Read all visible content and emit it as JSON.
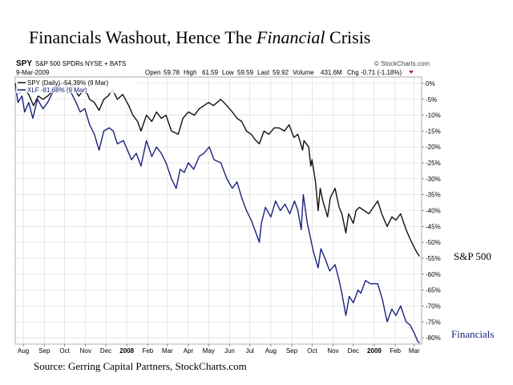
{
  "title": {
    "part1": "Financials Washout, Hence The ",
    "part2": "Financial",
    "part3": " Crisis"
  },
  "header": {
    "symbol": "SPY",
    "name": "S&P 500 SPDRs",
    "exchange": "NYSE + BATS",
    "source": "© StockCharts.com",
    "date": "9-Mar-2009",
    "open_label": "Open",
    "open": "59.78",
    "high_label": "High",
    "high": "61.59",
    "low_label": "Low",
    "low": "59.59",
    "last_label": "Last",
    "last": "59.92",
    "volume_label": "Volume",
    "volume": "431.6M",
    "chg_label": "Chg",
    "chg": "-0.71 (-1.18%)"
  },
  "legend": {
    "spy": "SPY (Daily) -54.39% (9 Mar)",
    "xlf": "XLF -81.68% (9 Mar)"
  },
  "side_labels": {
    "sp500": "S&P 500",
    "financials": "Financials"
  },
  "footer": {
    "source": "Source: Gerring Capital Partners, StockCharts.com"
  },
  "colors": {
    "spy": "#111111",
    "xlf": "#1a237e",
    "grid": "#d8d8d8",
    "chg": "#c2185b"
  },
  "chart_data": {
    "type": "line",
    "title": "Financials Washout, Hence The Financial Crisis",
    "xlabel": "",
    "ylabel": "",
    "ylim": [
      -82,
      2
    ],
    "yticks": [
      0,
      -5,
      -10,
      -15,
      -20,
      -25,
      -30,
      -35,
      -40,
      -45,
      -50,
      -55,
      -60,
      -65,
      -70,
      -75,
      -80
    ],
    "ytick_labels": [
      "0%",
      "-5%",
      "-10%",
      "-15%",
      "-20%",
      "-25%",
      "-30%",
      "-35%",
      "-40%",
      "-45%",
      "-50%",
      "-55%",
      "-60%",
      "-65%",
      "-70%",
      "-75%",
      "-80%"
    ],
    "xlim": [
      "2007-07-20",
      "2009-03-12"
    ],
    "x_ticks": [
      {
        "date": "2007-08-01",
        "label": "Aug"
      },
      {
        "date": "2007-09-01",
        "label": "Sep"
      },
      {
        "date": "2007-10-01",
        "label": "Oct"
      },
      {
        "date": "2007-11-01",
        "label": "Nov"
      },
      {
        "date": "2007-12-01",
        "label": "Dec"
      },
      {
        "date": "2008-01-01",
        "label": "2008"
      },
      {
        "date": "2008-02-01",
        "label": "Feb"
      },
      {
        "date": "2008-03-01",
        "label": "Mar"
      },
      {
        "date": "2008-04-01",
        "label": "Apr"
      },
      {
        "date": "2008-05-01",
        "label": "May"
      },
      {
        "date": "2008-06-01",
        "label": "Jun"
      },
      {
        "date": "2008-07-01",
        "label": "Jul"
      },
      {
        "date": "2008-08-01",
        "label": "Aug"
      },
      {
        "date": "2008-09-01",
        "label": "Sep"
      },
      {
        "date": "2008-10-01",
        "label": "Oct"
      },
      {
        "date": "2008-11-01",
        "label": "Nov"
      },
      {
        "date": "2008-12-01",
        "label": "Dec"
      },
      {
        "date": "2009-01-01",
        "label": "2009"
      },
      {
        "date": "2009-02-01",
        "label": "Feb"
      },
      {
        "date": "2009-03-01",
        "label": "Mar"
      }
    ],
    "grid": true,
    "series": [
      {
        "name": "SPY (Daily) -54.39% (9 Mar)",
        "color": "#111111",
        "points": [
          [
            "2007-07-20",
            0
          ],
          [
            "2007-07-26",
            -3
          ],
          [
            "2007-08-02",
            -2
          ],
          [
            "2007-08-09",
            -3.5
          ],
          [
            "2007-08-16",
            -7
          ],
          [
            "2007-08-23",
            -4
          ],
          [
            "2007-08-30",
            -5
          ],
          [
            "2007-09-06",
            -4
          ],
          [
            "2007-09-13",
            -2.5
          ],
          [
            "2007-09-20",
            -1
          ],
          [
            "2007-09-27",
            0
          ],
          [
            "2007-10-09",
            0
          ],
          [
            "2007-10-16",
            -2
          ],
          [
            "2007-10-22",
            -4
          ],
          [
            "2007-10-31",
            -1.5
          ],
          [
            "2007-11-07",
            -5
          ],
          [
            "2007-11-14",
            -6
          ],
          [
            "2007-11-21",
            -8.5
          ],
          [
            "2007-11-28",
            -5
          ],
          [
            "2007-12-04",
            -4
          ],
          [
            "2007-12-11",
            -2
          ],
          [
            "2007-12-18",
            -5
          ],
          [
            "2007-12-26",
            -3.5
          ],
          [
            "2008-01-04",
            -7
          ],
          [
            "2008-01-10",
            -10
          ],
          [
            "2008-01-17",
            -12
          ],
          [
            "2008-01-22",
            -15
          ],
          [
            "2008-01-30",
            -10
          ],
          [
            "2008-02-07",
            -12
          ],
          [
            "2008-02-14",
            -9
          ],
          [
            "2008-02-21",
            -11
          ],
          [
            "2008-02-28",
            -10
          ],
          [
            "2008-03-07",
            -15
          ],
          [
            "2008-03-17",
            -16
          ],
          [
            "2008-03-24",
            -11
          ],
          [
            "2008-04-01",
            -9
          ],
          [
            "2008-04-10",
            -10
          ],
          [
            "2008-04-17",
            -8
          ],
          [
            "2008-04-24",
            -7
          ],
          [
            "2008-05-01",
            -6
          ],
          [
            "2008-05-08",
            -7
          ],
          [
            "2008-05-19",
            -5
          ],
          [
            "2008-05-28",
            -7
          ],
          [
            "2008-06-05",
            -9
          ],
          [
            "2008-06-12",
            -11
          ],
          [
            "2008-06-19",
            -12
          ],
          [
            "2008-06-26",
            -15
          ],
          [
            "2008-07-03",
            -16
          ],
          [
            "2008-07-10",
            -18
          ],
          [
            "2008-07-15",
            -19
          ],
          [
            "2008-07-22",
            -15
          ],
          [
            "2008-07-29",
            -16
          ],
          [
            "2008-08-06",
            -14
          ],
          [
            "2008-08-13",
            -14
          ],
          [
            "2008-08-21",
            -15
          ],
          [
            "2008-08-28",
            -13
          ],
          [
            "2008-09-04",
            -17
          ],
          [
            "2008-09-10",
            -16
          ],
          [
            "2008-09-17",
            -21
          ],
          [
            "2008-09-19",
            -18
          ],
          [
            "2008-09-26",
            -20
          ],
          [
            "2008-09-29",
            -26
          ],
          [
            "2008-10-01",
            -24
          ],
          [
            "2008-10-06",
            -31
          ],
          [
            "2008-10-10",
            -40
          ],
          [
            "2008-10-13",
            -33
          ],
          [
            "2008-10-17",
            -37
          ],
          [
            "2008-10-24",
            -42
          ],
          [
            "2008-10-28",
            -36
          ],
          [
            "2008-11-04",
            -33
          ],
          [
            "2008-11-10",
            -39
          ],
          [
            "2008-11-14",
            -41
          ],
          [
            "2008-11-20",
            -47
          ],
          [
            "2008-11-24",
            -41
          ],
          [
            "2008-12-01",
            -44
          ],
          [
            "2008-12-05",
            -40
          ],
          [
            "2008-12-10",
            -39
          ],
          [
            "2008-12-17",
            -40
          ],
          [
            "2008-12-24",
            -41
          ],
          [
            "2009-01-06",
            -37
          ],
          [
            "2009-01-12",
            -41
          ],
          [
            "2009-01-20",
            -45
          ],
          [
            "2009-01-27",
            -42
          ],
          [
            "2009-02-02",
            -43
          ],
          [
            "2009-02-09",
            -41
          ],
          [
            "2009-02-17",
            -46
          ],
          [
            "2009-02-23",
            -49
          ],
          [
            "2009-03-02",
            -52
          ],
          [
            "2009-03-06",
            -53.5
          ],
          [
            "2009-03-09",
            -54.4
          ]
        ]
      },
      {
        "name": "XLF -81.68% (9 Mar)",
        "color": "#1a237e",
        "points": [
          [
            "2007-07-20",
            0
          ],
          [
            "2007-07-24",
            -6
          ],
          [
            "2007-07-30",
            -4
          ],
          [
            "2007-08-03",
            -9
          ],
          [
            "2007-08-09",
            -6
          ],
          [
            "2007-08-15",
            -11
          ],
          [
            "2007-08-22",
            -5
          ],
          [
            "2007-08-30",
            -8
          ],
          [
            "2007-09-06",
            -6
          ],
          [
            "2007-09-13",
            -3
          ],
          [
            "2007-09-20",
            0
          ],
          [
            "2007-09-27",
            -2
          ],
          [
            "2007-10-04",
            -1
          ],
          [
            "2007-10-11",
            -3
          ],
          [
            "2007-10-18",
            -6
          ],
          [
            "2007-10-24",
            -9
          ],
          [
            "2007-10-31",
            -8
          ],
          [
            "2007-11-07",
            -13
          ],
          [
            "2007-11-14",
            -16
          ],
          [
            "2007-11-21",
            -21
          ],
          [
            "2007-11-28",
            -15
          ],
          [
            "2007-12-06",
            -14
          ],
          [
            "2007-12-12",
            -15
          ],
          [
            "2007-12-18",
            -19
          ],
          [
            "2007-12-27",
            -18
          ],
          [
            "2008-01-08",
            -24
          ],
          [
            "2008-01-15",
            -22
          ],
          [
            "2008-01-22",
            -26
          ],
          [
            "2008-01-30",
            -18
          ],
          [
            "2008-02-07",
            -23
          ],
          [
            "2008-02-14",
            -20
          ],
          [
            "2008-02-21",
            -22
          ],
          [
            "2008-02-28",
            -25
          ],
          [
            "2008-03-07",
            -30
          ],
          [
            "2008-03-14",
            -33
          ],
          [
            "2008-03-20",
            -27
          ],
          [
            "2008-03-26",
            -28
          ],
          [
            "2008-04-01",
            -25
          ],
          [
            "2008-04-09",
            -27
          ],
          [
            "2008-04-17",
            -23
          ],
          [
            "2008-04-24",
            -22
          ],
          [
            "2008-05-02",
            -20
          ],
          [
            "2008-05-09",
            -24
          ],
          [
            "2008-05-19",
            -25
          ],
          [
            "2008-05-28",
            -30
          ],
          [
            "2008-06-05",
            -33
          ],
          [
            "2008-06-12",
            -31
          ],
          [
            "2008-06-19",
            -36
          ],
          [
            "2008-06-26",
            -40
          ],
          [
            "2008-07-03",
            -43
          ],
          [
            "2008-07-10",
            -47
          ],
          [
            "2008-07-15",
            -50
          ],
          [
            "2008-07-18",
            -44
          ],
          [
            "2008-07-24",
            -39
          ],
          [
            "2008-08-01",
            -42
          ],
          [
            "2008-08-08",
            -37
          ],
          [
            "2008-08-15",
            -40
          ],
          [
            "2008-08-22",
            -38
          ],
          [
            "2008-08-29",
            -41
          ],
          [
            "2008-09-05",
            -37
          ],
          [
            "2008-09-10",
            -40
          ],
          [
            "2008-09-15",
            -46
          ],
          [
            "2008-09-18",
            -35
          ],
          [
            "2008-09-24",
            -44
          ],
          [
            "2008-09-29",
            -49
          ],
          [
            "2008-10-03",
            -53
          ],
          [
            "2008-10-10",
            -58
          ],
          [
            "2008-10-14",
            -52
          ],
          [
            "2008-10-20",
            -55
          ],
          [
            "2008-10-27",
            -59
          ],
          [
            "2008-11-04",
            -57
          ],
          [
            "2008-11-10",
            -62
          ],
          [
            "2008-11-14",
            -66
          ],
          [
            "2008-11-20",
            -73
          ],
          [
            "2008-11-25",
            -67
          ],
          [
            "2008-12-01",
            -69
          ],
          [
            "2008-12-08",
            -65
          ],
          [
            "2008-12-12",
            -66
          ],
          [
            "2008-12-19",
            -62
          ],
          [
            "2008-12-26",
            -63
          ],
          [
            "2009-01-06",
            -63
          ],
          [
            "2009-01-13",
            -68
          ],
          [
            "2009-01-20",
            -75
          ],
          [
            "2009-01-27",
            -71
          ],
          [
            "2009-02-02",
            -73
          ],
          [
            "2009-02-09",
            -70
          ],
          [
            "2009-02-17",
            -75
          ],
          [
            "2009-02-23",
            -76
          ],
          [
            "2009-03-02",
            -79
          ],
          [
            "2009-03-06",
            -81
          ],
          [
            "2009-03-09",
            -81.7
          ]
        ]
      }
    ]
  }
}
